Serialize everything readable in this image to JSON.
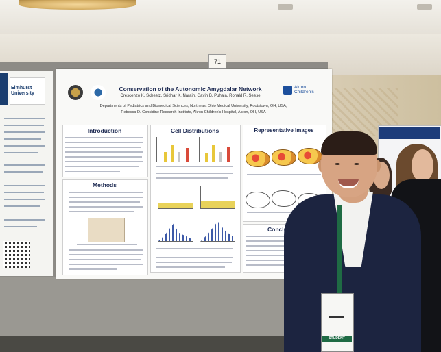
{
  "scene": {
    "number_card": "71"
  },
  "left_poster": {
    "university": "Elmhurst University"
  },
  "poster": {
    "title": "Conservation of the Autonomic Amygdalar Network",
    "authors": "Crescenzo K. Scheetz, Sridhar K. Narain, Gavin B. Puhala, Ronald R. Seese",
    "affiliation_1": "Departments of Pediatrics and Biomedical Sciences, Northeast Ohio Medical University, Rootstown, OH, USA;",
    "affiliation_2": "Rebecca D. Considine Research Institute, Akron Children's Hospital, Akron, OH, USA",
    "sponsor_logo": "Akron Children's",
    "sections": {
      "introduction": "Introduction",
      "methods": "Methods",
      "cell_distributions": "Cell Distributions",
      "representative_images": "Representative Images",
      "conclusion": "Conclusi"
    }
  },
  "badge": {
    "role": "STUDENT"
  },
  "colors": {
    "poster_title": "#1d2a52",
    "jacket": "#1c2440",
    "lanyard": "#1f6b44",
    "board": "#8d8b86"
  }
}
